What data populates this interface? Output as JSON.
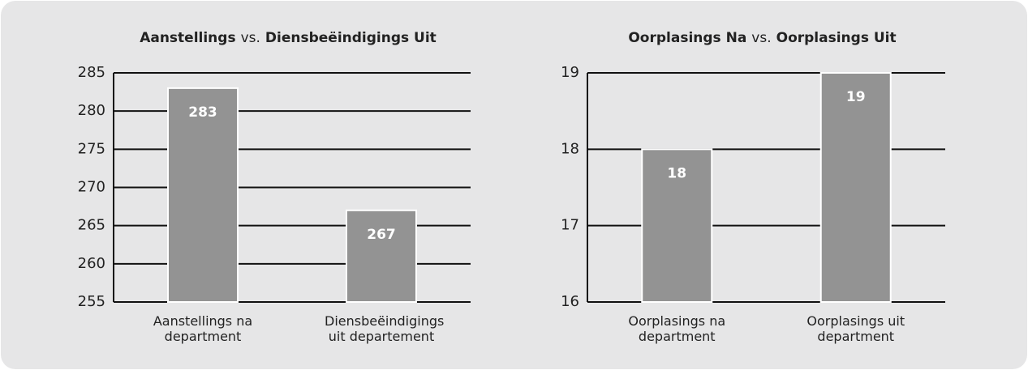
{
  "chart_data": [
    {
      "type": "bar",
      "title": [
        "Aanstellings",
        "vs.",
        "Diensbeëindigings Uit"
      ],
      "categories": [
        "Aanstellings na department",
        "Diensbeëindigings uit departement"
      ],
      "values": [
        283,
        267
      ],
      "color": "#939393",
      "ylim": [
        255,
        285
      ],
      "yticks": [
        255,
        260,
        265,
        270,
        275,
        280,
        285
      ],
      "grid": true
    },
    {
      "type": "bar",
      "title": [
        "Oorplasings Na",
        "vs.",
        "Oorplasings Uit"
      ],
      "categories": [
        "Oorplasings na department",
        "Oorplasings uit department"
      ],
      "values": [
        18,
        19
      ],
      "color": "#939393",
      "ylim": [
        16,
        19
      ],
      "yticks": [
        16,
        17,
        18,
        19
      ],
      "grid": true
    }
  ]
}
